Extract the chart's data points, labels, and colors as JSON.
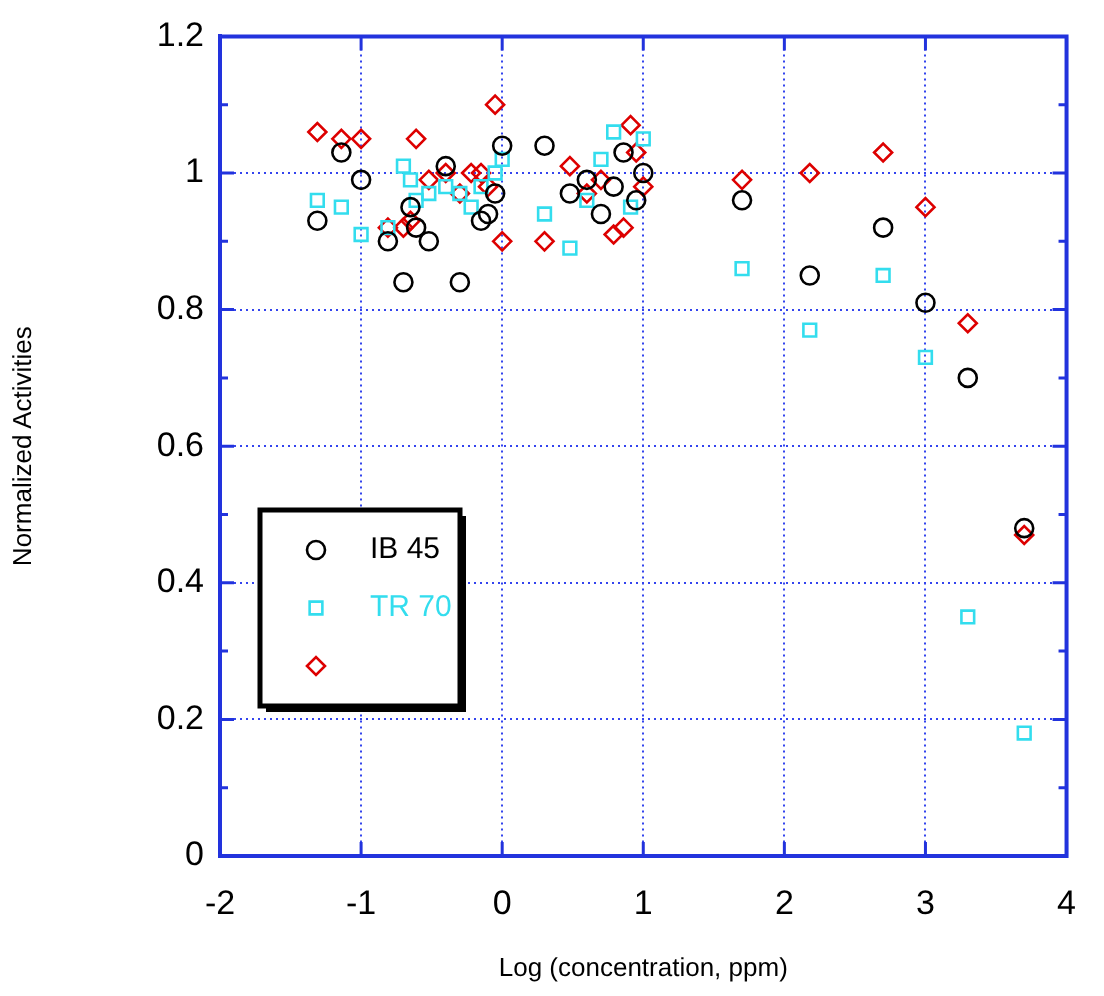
{
  "chart_data": {
    "type": "scatter",
    "xlabel": "Log (concentration, ppm)",
    "ylabel": "Normalized Activities",
    "xlim": [
      -2,
      4
    ],
    "xticks": [
      -2,
      -1,
      0,
      1,
      2,
      3,
      4
    ],
    "ylim": [
      0,
      1.2
    ],
    "yticks": [
      0,
      0.2,
      0.4,
      0.6,
      0.8,
      1,
      1.2
    ],
    "grid": true,
    "legend": "bottom left",
    "series": [
      {
        "name": "IB 45",
        "color": "#000000",
        "marker": "circle",
        "x": [
          -1.31,
          -1.14,
          -1.0,
          -0.81,
          -0.7,
          -0.65,
          -0.61,
          -0.52,
          -0.4,
          -0.3,
          -0.15,
          -0.1,
          -0.05,
          0,
          0.3,
          0.48,
          0.6,
          0.7,
          0.79,
          0.86,
          0.95,
          1.0,
          1.7,
          2.18,
          2.7,
          3.0,
          3.3,
          3.7
        ],
        "values": [
          0.93,
          1.03,
          0.99,
          0.9,
          0.84,
          0.95,
          0.92,
          0.9,
          1.01,
          0.84,
          0.93,
          0.94,
          0.97,
          1.04,
          1.04,
          0.97,
          0.99,
          0.94,
          0.98,
          1.03,
          0.96,
          1.0,
          0.96,
          0.85,
          0.92,
          0.81,
          0.7,
          0.48
        ]
      },
      {
        "name": "TR 70",
        "color": "#33ddee",
        "marker": "square",
        "x": [
          -1.31,
          -1.14,
          -1.0,
          -0.81,
          -0.7,
          -0.65,
          -0.61,
          -0.52,
          -0.4,
          -0.3,
          -0.22,
          -0.15,
          -0.05,
          0,
          0.3,
          0.48,
          0.6,
          0.7,
          0.79,
          0.91,
          1.0,
          1.7,
          2.18,
          2.7,
          3.0,
          3.3,
          3.7
        ],
        "values": [
          0.96,
          0.95,
          0.91,
          0.92,
          1.01,
          0.99,
          0.96,
          0.97,
          0.98,
          0.97,
          0.95,
          0.98,
          1.0,
          1.02,
          0.94,
          0.89,
          0.96,
          1.02,
          1.06,
          0.95,
          1.05,
          0.86,
          0.77,
          0.85,
          0.73,
          0.35,
          0.18
        ]
      },
      {
        "color": "#dd0000",
        "marker": "diamond",
        "x": [
          -1.31,
          -1.14,
          -1.0,
          -0.81,
          -0.7,
          -0.65,
          -0.61,
          -0.52,
          -0.4,
          -0.3,
          -0.22,
          -0.15,
          -0.1,
          -0.05,
          0,
          0.3,
          0.48,
          0.6,
          0.7,
          0.79,
          0.86,
          0.91,
          0.95,
          1.0,
          1.7,
          2.18,
          2.7,
          3.0,
          3.3,
          3.7
        ],
        "values": [
          1.06,
          1.05,
          1.05,
          0.92,
          0.92,
          0.93,
          1.05,
          0.99,
          1.0,
          0.97,
          1.0,
          1.0,
          0.98,
          1.1,
          0.9,
          0.9,
          1.01,
          0.97,
          0.99,
          0.91,
          0.92,
          1.07,
          1.03,
          0.98,
          0.99,
          1.0,
          1.03,
          0.95,
          0.78,
          0.47
        ]
      }
    ]
  }
}
